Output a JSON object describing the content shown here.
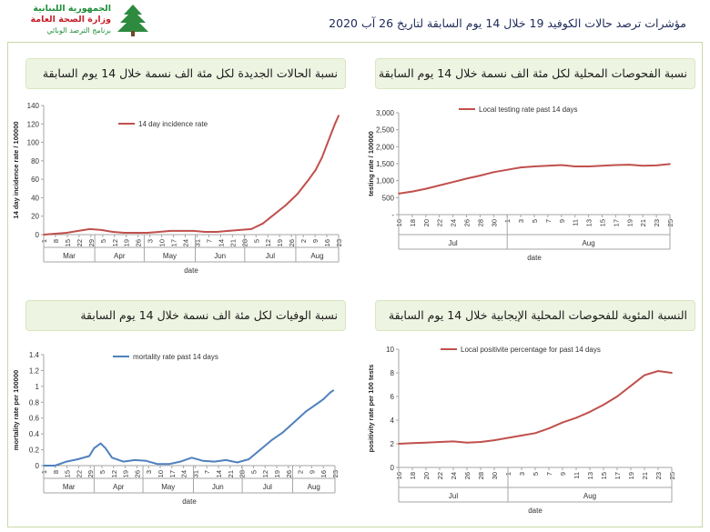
{
  "header": {
    "logo_line1": "الجمهورية اللبنانية",
    "logo_line2": "وزارة الصحة العامة",
    "logo_line3": "برنامج الترصد الوبائي",
    "logo_icon": "cedar-icon",
    "title": "مؤشرات ترصد حالات الكوفيد 19 خلال 14 يوم السابقة لتاريخ 26 آب 2020"
  },
  "colors": {
    "red_series": "#c0504d",
    "blue_series": "#4f81bd",
    "panel_title_bg": "#eef4e2",
    "frame_border": "#c8d8a8",
    "axis": "#a6a6a6"
  },
  "panels": {
    "incidence": {
      "title": "نسبة الحالات الجديدة لكل مئة الف نسمة خلال 14 يوم السابقة"
    },
    "testing": {
      "title": "نسبة الفحوصات المحلية لكل مئة الف نسمة خلال 14 يوم السابقة"
    },
    "mortality": {
      "title": "نسبة الوفيات لكل مئة الف نسمة خلال 14 يوم السابقة"
    },
    "positivity": {
      "title": "النسبة المئوية للفحوصات المحلية الإيجابية خلال 14 يوم السابقة"
    }
  },
  "chart_data": [
    {
      "id": "incidence",
      "type": "line",
      "ylabel": "14 day incidence rate / 100000",
      "xlabel": "date",
      "ylim": [
        0,
        140
      ],
      "yticks": [
        "0",
        "20",
        "40",
        "60",
        "80",
        "100",
        "120",
        "140"
      ],
      "ytick_values": [
        0,
        20,
        40,
        60,
        80,
        100,
        120,
        140
      ],
      "xticks": [
        "1",
        "8",
        "15",
        "22",
        "29",
        "5",
        "12",
        "19",
        "26",
        "3",
        "10",
        "17",
        "24",
        "31",
        "7",
        "14",
        "21",
        "28",
        "5",
        "12",
        "19",
        "26",
        "2",
        "9",
        "16",
        "23"
      ],
      "months": [
        "Mar",
        "Apr",
        "May",
        "Jun",
        "Jul",
        "Aug"
      ],
      "month_day_offsets": [
        0,
        31,
        61,
        92,
        122,
        153,
        184
      ],
      "x_start_day": 0,
      "x_end_day": 179,
      "grid": false,
      "legend": "top-left",
      "series": [
        {
          "name": "14 day incidence rate",
          "color": "#c0504d",
          "x": [
            0,
            7,
            14,
            21,
            28,
            35,
            42,
            49,
            56,
            63,
            70,
            77,
            84,
            91,
            98,
            105,
            112,
            119,
            126,
            133,
            140,
            147,
            154,
            161,
            165,
            169,
            172,
            175,
            177,
            179
          ],
          "values": [
            0,
            1,
            2,
            4,
            6,
            5,
            3,
            2,
            2,
            2,
            3,
            4,
            4,
            4,
            3,
            3,
            4,
            5,
            6,
            12,
            22,
            32,
            44,
            60,
            70,
            84,
            98,
            112,
            121,
            129
          ]
        }
      ]
    },
    {
      "id": "testing",
      "type": "line",
      "ylabel": "testing rate / 100000",
      "xlabel": "date",
      "ylim": [
        0,
        3000
      ],
      "yticks": [
        "-",
        "500",
        "1,000",
        "1,500",
        "2,000",
        "2,500",
        "3,000"
      ],
      "ytick_values": [
        0,
        500,
        1000,
        1500,
        2000,
        2500,
        3000
      ],
      "xticks": [
        "16",
        "18",
        "20",
        "22",
        "24",
        "26",
        "28",
        "30",
        "1",
        "3",
        "5",
        "7",
        "9",
        "11",
        "13",
        "15",
        "17",
        "19",
        "21",
        "23",
        "25"
      ],
      "months": [
        "Jul",
        "Aug"
      ],
      "month_day_offsets": [
        0,
        16,
        47
      ],
      "x_start_day": 0,
      "x_end_day": 40,
      "grid": false,
      "legend": "top-center",
      "series": [
        {
          "name": "Local testing rate past 14 days",
          "color": "#c0504d",
          "x": [
            0,
            2,
            4,
            6,
            8,
            10,
            12,
            14,
            16,
            18,
            20,
            22,
            24,
            26,
            28,
            30,
            32,
            34,
            36,
            38,
            40
          ],
          "values": [
            620,
            680,
            760,
            860,
            960,
            1060,
            1150,
            1250,
            1320,
            1390,
            1420,
            1440,
            1460,
            1420,
            1420,
            1440,
            1460,
            1470,
            1440,
            1450,
            1490
          ]
        }
      ]
    },
    {
      "id": "mortality",
      "type": "line",
      "ylabel": "mortality rate per 100000",
      "xlabel": "date",
      "ylim": [
        0,
        1.4
      ],
      "yticks": [
        "0",
        "0.2",
        "0.4",
        "0.6",
        "0.8",
        "1",
        "1.2",
        "1.4"
      ],
      "ytick_values": [
        0,
        0.2,
        0.4,
        0.6,
        0.8,
        1.0,
        1.2,
        1.4
      ],
      "xticks": [
        "1",
        "8",
        "15",
        "22",
        "29",
        "5",
        "12",
        "19",
        "26",
        "3",
        "10",
        "17",
        "24",
        "31",
        "7",
        "14",
        "21",
        "28",
        "5",
        "12",
        "19",
        "26",
        "2",
        "9",
        "16",
        "23"
      ],
      "months": [
        "Mar",
        "Apr",
        "May",
        "Jun",
        "Jul",
        "Aug"
      ],
      "month_day_offsets": [
        0,
        31,
        61,
        92,
        122,
        153,
        184
      ],
      "x_start_day": 0,
      "x_end_day": 179,
      "grid": false,
      "legend": "top-left",
      "series": [
        {
          "name": "mortality rate past 14 days",
          "color": "#4f81bd",
          "x": [
            0,
            7,
            14,
            21,
            28,
            31,
            35,
            38,
            42,
            49,
            56,
            63,
            70,
            77,
            84,
            91,
            98,
            105,
            112,
            119,
            126,
            133,
            140,
            147,
            154,
            161,
            168,
            172,
            176,
            178
          ],
          "values": [
            0,
            0,
            0.05,
            0.08,
            0.12,
            0.22,
            0.28,
            0.22,
            0.1,
            0.05,
            0.07,
            0.06,
            0.02,
            0.02,
            0.05,
            0.1,
            0.06,
            0.05,
            0.07,
            0.04,
            0.08,
            0.2,
            0.32,
            0.42,
            0.55,
            0.68,
            0.78,
            0.84,
            0.92,
            0.95
          ]
        }
      ]
    },
    {
      "id": "positivity",
      "type": "line",
      "ylabel": "positivity rate per 100 tests",
      "xlabel": "date",
      "ylim": [
        0,
        10
      ],
      "yticks": [
        "0",
        "2",
        "4",
        "6",
        "8",
        "10"
      ],
      "ytick_values": [
        0,
        2,
        4,
        6,
        8,
        10
      ],
      "xticks": [
        "16",
        "18",
        "20",
        "22",
        "24",
        "26",
        "28",
        "30",
        "1",
        "3",
        "5",
        "7",
        "9",
        "11",
        "13",
        "15",
        "17",
        "19",
        "21",
        "23",
        "25"
      ],
      "months": [
        "Jul",
        "Aug"
      ],
      "month_day_offsets": [
        0,
        16,
        47
      ],
      "x_start_day": 0,
      "x_end_day": 40,
      "grid": false,
      "legend": "top-center",
      "series": [
        {
          "name": "Local positivite percentage for past 14 days",
          "color": "#c0504d",
          "x": [
            0,
            2,
            4,
            6,
            8,
            10,
            12,
            14,
            16,
            18,
            20,
            22,
            24,
            26,
            28,
            30,
            32,
            34,
            36,
            38,
            40
          ],
          "values": [
            2.0,
            2.05,
            2.1,
            2.15,
            2.2,
            2.1,
            2.15,
            2.3,
            2.5,
            2.7,
            2.9,
            3.3,
            3.8,
            4.2,
            4.7,
            5.3,
            6.0,
            6.9,
            7.8,
            8.15,
            8.0
          ]
        }
      ]
    }
  ]
}
